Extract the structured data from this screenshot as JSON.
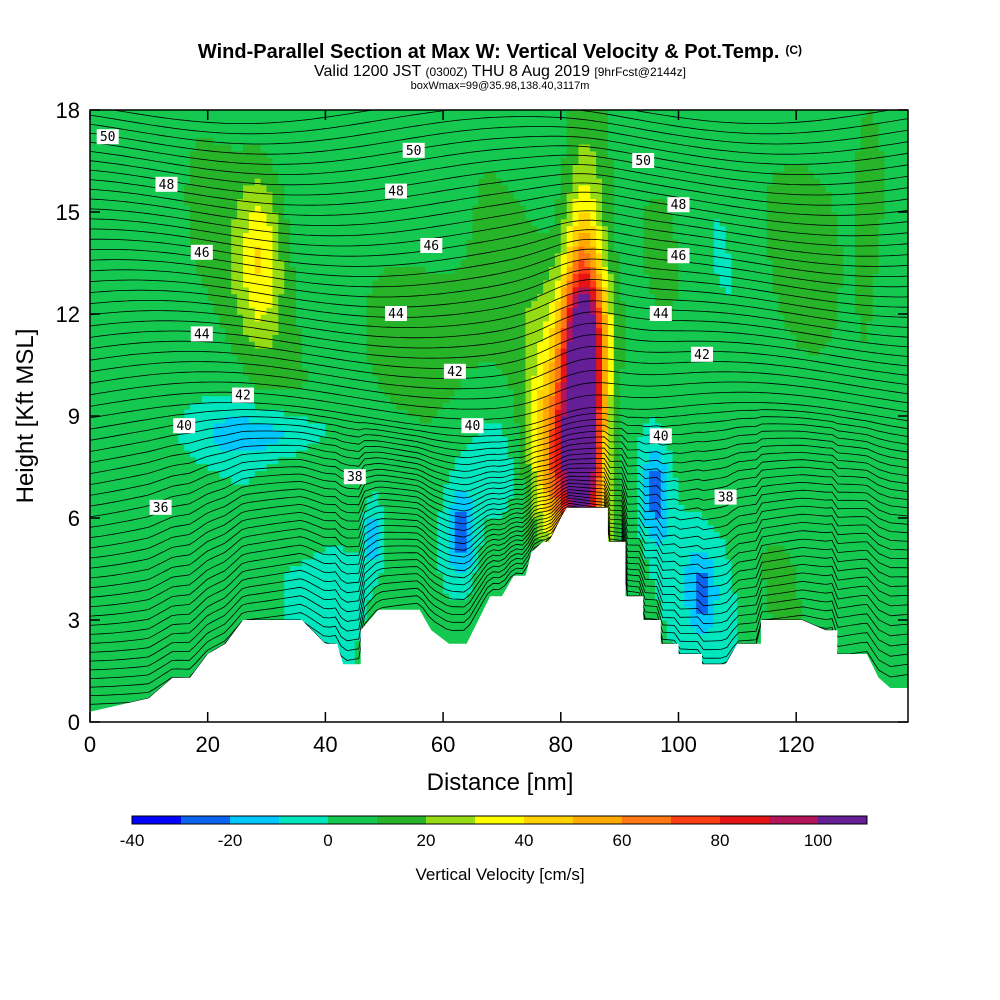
{
  "title": {
    "main": "Wind-Parallel Section at Max W: Vertical Velocity & Pot.Temp.",
    "main_mark": "(C)",
    "valid_a": "Valid 1200 JST",
    "valid_b": "(0300Z)",
    "valid_c": "THU 8 Aug 2019",
    "valid_d": "[9hrFcst@2144z]",
    "box": "boxWmax=99@35.98,138.40,3117m"
  },
  "chart_data": {
    "type": "heatmap",
    "xlabel": "Distance [nm]",
    "ylabel": "Height [Kft MSL]",
    "xlim": [
      0,
      139
    ],
    "ylim": [
      0,
      18
    ],
    "x_ticks": [
      0,
      20,
      40,
      60,
      80,
      100,
      120
    ],
    "y_ticks": [
      0,
      3,
      6,
      9,
      12,
      15,
      18
    ],
    "colorbar": {
      "label": "Vertical Velocity [cm/s]",
      "boundaries": [
        -40,
        -30,
        -20,
        -10,
        0,
        10,
        20,
        30,
        40,
        50,
        60,
        70,
        80,
        90,
        100,
        110
      ],
      "colors": [
        "#0000ff",
        "#0a64f0",
        "#00c8ff",
        "#00e6be",
        "#14c850",
        "#28b428",
        "#96dc14",
        "#ffff00",
        "#ffd200",
        "#ffaa00",
        "#ff7814",
        "#ff3c14",
        "#e61414",
        "#b4145a",
        "#641e96"
      ],
      "tick_values": [
        -40,
        -20,
        0,
        20,
        40,
        60,
        80,
        100
      ]
    },
    "terrain_kft": [
      [
        0,
        0.3
      ],
      [
        10,
        0.7
      ],
      [
        12,
        1.0
      ],
      [
        14,
        1.3
      ],
      [
        17,
        1.3
      ],
      [
        20,
        2.0
      ],
      [
        23,
        2.3
      ],
      [
        26,
        3.0
      ],
      [
        36,
        3.0
      ],
      [
        40,
        2.3
      ],
      [
        42,
        2.3
      ],
      [
        43,
        1.7
      ],
      [
        46,
        1.7
      ],
      [
        46,
        2.7
      ],
      [
        49,
        3.3
      ],
      [
        56,
        3.3
      ],
      [
        58,
        2.7
      ],
      [
        61,
        2.3
      ],
      [
        64,
        2.3
      ],
      [
        66,
        3.0
      ],
      [
        68,
        3.7
      ],
      [
        70,
        3.7
      ],
      [
        72,
        4.3
      ],
      [
        74,
        4.3
      ],
      [
        75,
        5.0
      ],
      [
        77,
        5.3
      ],
      [
        78,
        5.3
      ],
      [
        80,
        6.0
      ],
      [
        81,
        6.3
      ],
      [
        88,
        6.3
      ],
      [
        88,
        5.3
      ],
      [
        91,
        5.3
      ],
      [
        91,
        3.7
      ],
      [
        94,
        3.7
      ],
      [
        94,
        3.0
      ],
      [
        97,
        3.0
      ],
      [
        97,
        2.3
      ],
      [
        100,
        2.3
      ],
      [
        100,
        2.0
      ],
      [
        104,
        2.0
      ],
      [
        104,
        1.7
      ],
      [
        108,
        1.7
      ],
      [
        110,
        2.3
      ],
      [
        114,
        2.3
      ],
      [
        114,
        3.0
      ],
      [
        121,
        3.0
      ],
      [
        125,
        2.7
      ],
      [
        127,
        2.7
      ],
      [
        127,
        2.0
      ],
      [
        132,
        2.0
      ],
      [
        134,
        1.3
      ],
      [
        136,
        1.0
      ],
      [
        139,
        1.0
      ]
    ],
    "w_features": [
      {
        "x": 84,
        "z": 9.5,
        "rx": 3.5,
        "rz": 5.5,
        "w": 100
      },
      {
        "x": 80,
        "z": 7.5,
        "rx": 5,
        "rz": 2.5,
        "w": 45
      },
      {
        "x": 79,
        "z": 8.5,
        "rx": 6,
        "rz": 3.2,
        "w": 25
      },
      {
        "x": 84,
        "z": 11.5,
        "rx": 5,
        "rz": 1.8,
        "w": 30
      },
      {
        "x": 29,
        "z": 13.7,
        "rx": 3.5,
        "rz": 2.5,
        "w": 25
      },
      {
        "x": 28,
        "z": 13.5,
        "rx": 11,
        "rz": 3.5,
        "w": 10
      },
      {
        "x": 98,
        "z": 14.5,
        "rx": 6,
        "rz": 3,
        "w": 10
      },
      {
        "x": 60,
        "z": 11.5,
        "rx": 18,
        "rz": 2.5,
        "w": 12
      },
      {
        "x": 122,
        "z": 14.0,
        "rx": 6,
        "rz": 3,
        "w": 10
      },
      {
        "x": 132,
        "z": 13.0,
        "rx": 2.5,
        "rz": 5,
        "w": 8
      },
      {
        "x": 30,
        "z": 8.5,
        "rx": 12,
        "rz": 0.8,
        "w": -20
      },
      {
        "x": 63,
        "z": 5.5,
        "rx": 2.5,
        "rz": 1.4,
        "w": -30
      },
      {
        "x": 96,
        "z": 6.8,
        "rx": 2.5,
        "rz": 1.6,
        "w": -28
      },
      {
        "x": 48,
        "z": 5.5,
        "rx": 1.5,
        "rz": 1.0,
        "w": -22
      },
      {
        "x": 104,
        "z": 3.8,
        "rx": 2,
        "rz": 1.0,
        "w": -18
      },
      {
        "x": 42,
        "z": 4.0,
        "rx": 6,
        "rz": 1.8,
        "w": -14
      },
      {
        "x": 104,
        "z": 4.5,
        "rx": 8,
        "rz": 2.2,
        "w": -12
      },
      {
        "x": 70,
        "z": 7.5,
        "rx": 10,
        "rz": 1.5,
        "w": -6
      },
      {
        "x": 8,
        "z": 5.0,
        "rx": 10,
        "rz": 3,
        "w": 6
      },
      {
        "x": 120,
        "z": 5.0,
        "rx": 10,
        "rz": 2.5,
        "w": 8
      }
    ],
    "theta_contour_labels": [
      {
        "x": 3,
        "y": 17.2,
        "text": "50"
      },
      {
        "x": 55,
        "y": 16.8,
        "text": "50"
      },
      {
        "x": 94,
        "y": 16.5,
        "text": "50"
      },
      {
        "x": 13,
        "y": 15.8,
        "text": "48"
      },
      {
        "x": 52,
        "y": 15.6,
        "text": "48"
      },
      {
        "x": 100,
        "y": 15.2,
        "text": "48"
      },
      {
        "x": 19,
        "y": 13.8,
        "text": "46"
      },
      {
        "x": 58,
        "y": 14.0,
        "text": "46"
      },
      {
        "x": 100,
        "y": 13.7,
        "text": "46"
      },
      {
        "x": 19,
        "y": 11.4,
        "text": "44"
      },
      {
        "x": 52,
        "y": 12.0,
        "text": "44"
      },
      {
        "x": 97,
        "y": 12.0,
        "text": "44"
      },
      {
        "x": 26,
        "y": 9.6,
        "text": "42"
      },
      {
        "x": 62,
        "y": 10.3,
        "text": "42"
      },
      {
        "x": 104,
        "y": 10.8,
        "text": "42"
      },
      {
        "x": 16,
        "y": 8.7,
        "text": "40"
      },
      {
        "x": 65,
        "y": 8.7,
        "text": "40"
      },
      {
        "x": 97,
        "y": 8.4,
        "text": "40"
      },
      {
        "x": 12,
        "y": 6.3,
        "text": "36"
      },
      {
        "x": 45,
        "y": 7.2,
        "text": "38"
      },
      {
        "x": 108,
        "y": 6.6,
        "text": "38"
      }
    ]
  }
}
